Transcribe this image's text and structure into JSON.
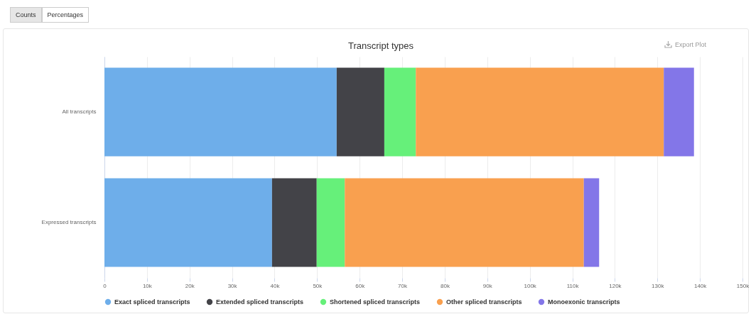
{
  "chart_data": {
    "type": "bar",
    "orientation": "horizontal",
    "stacked": true,
    "title": "Transcript types",
    "categories": [
      "All transcripts",
      "Expressed transcripts"
    ],
    "series": [
      {
        "name": "Exact spliced transcripts",
        "color": "#6eaeea",
        "values": [
          54600,
          39400
        ]
      },
      {
        "name": "Extended spliced transcripts",
        "color": "#434348",
        "values": [
          11200,
          10500
        ]
      },
      {
        "name": "Shortened spliced transcripts",
        "color": "#66f07a",
        "values": [
          7400,
          6600
        ]
      },
      {
        "name": "Other spliced transcripts",
        "color": "#f9a04f",
        "values": [
          58300,
          56200
        ]
      },
      {
        "name": "Monoexonic transcripts",
        "color": "#8376e8",
        "values": [
          7100,
          3600
        ]
      }
    ],
    "xlim": [
      0,
      150000
    ],
    "xticks": [
      0,
      {
        "value": 10000,
        "label": "10k"
      },
      {
        "value": 20000,
        "label": "20k"
      },
      {
        "value": 30000,
        "label": "30k"
      },
      {
        "value": 40000,
        "label": "40k"
      },
      {
        "value": 50000,
        "label": "50k"
      },
      {
        "value": 60000,
        "label": "60k"
      },
      {
        "value": 70000,
        "label": "70k"
      },
      {
        "value": 80000,
        "label": "80k"
      },
      {
        "value": 90000,
        "label": "90k"
      },
      {
        "value": 100000,
        "label": "100k"
      },
      {
        "value": 110000,
        "label": "110k"
      },
      {
        "value": 120000,
        "label": "120k"
      },
      {
        "value": 130000,
        "label": "130k"
      },
      {
        "value": 140000,
        "label": "140k"
      },
      {
        "value": 150000,
        "label": "150k"
      }
    ],
    "grid": "x",
    "legend": "bottom",
    "annotations": [
      "Counts",
      "Percentages",
      "Export Plot"
    ]
  }
}
